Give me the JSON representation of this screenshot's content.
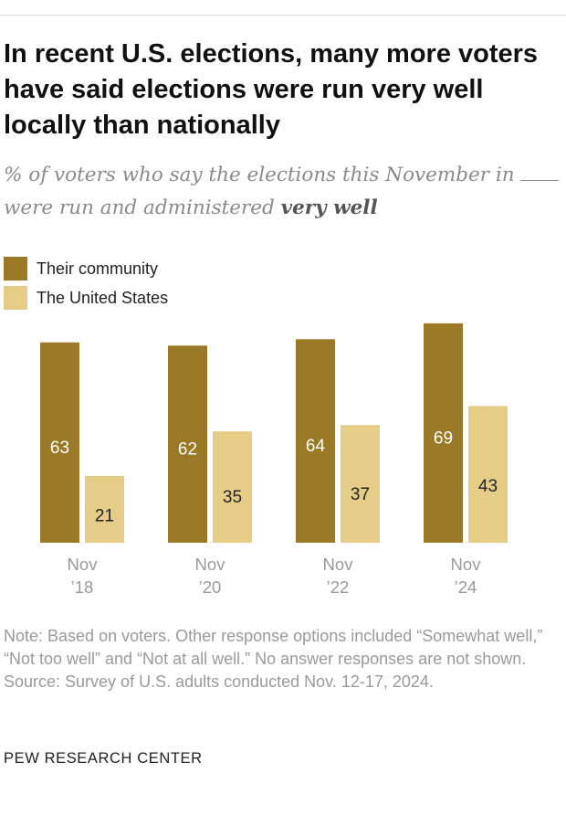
{
  "title": "In recent U.S. elections, many more voters have said elections were run very well locally than nationally",
  "subtitle": {
    "part1": "% of voters who say the elections this November in",
    "part2": "were run and administered",
    "emphasis": "very well"
  },
  "colors": {
    "community": "#9a7a26",
    "united_states": "#e5cd88",
    "label_light": "#ffffff",
    "label_dark": "#222222"
  },
  "chart_data": {
    "type": "bar",
    "categories": [
      "Nov\n’18",
      "Nov\n’20",
      "Nov\n’22",
      "Nov\n’24"
    ],
    "series": [
      {
        "name": "Their community",
        "values": [
          63,
          62,
          64,
          69
        ]
      },
      {
        "name": "The United States",
        "values": [
          21,
          35,
          37,
          43
        ]
      }
    ],
    "ylim": [
      0,
      70
    ],
    "grid": false,
    "legend": "top-left"
  },
  "notes": {
    "note": "Note: Based on voters. Other response options included “Somewhat well,” “Not too well” and “Not at all well.” No answer responses are not shown.",
    "source": "Source: Survey of U.S. adults conducted Nov. 12-17, 2024."
  },
  "brand": "PEW RESEARCH CENTER"
}
